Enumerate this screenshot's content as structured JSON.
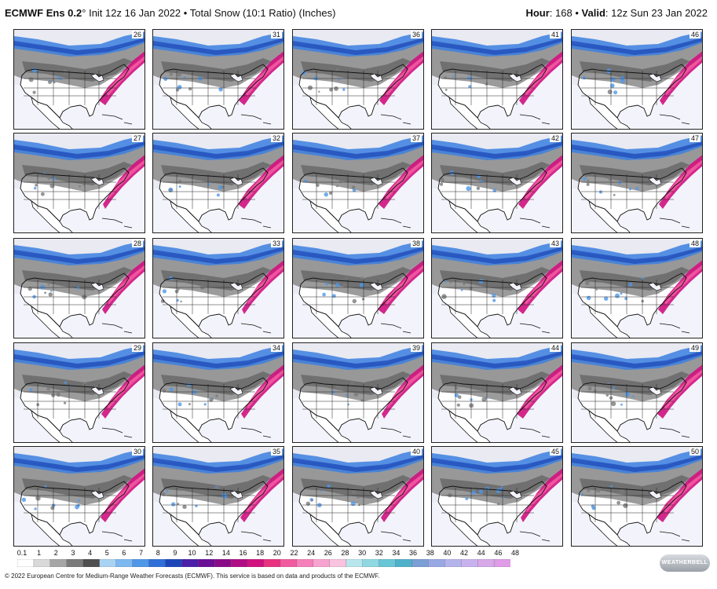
{
  "header": {
    "model": "ECMWF Ens 0.2",
    "degree": "°",
    "init": "Init 12z 16 Jan 2022",
    "bullet": "•",
    "product": "Total Snow (10:1 Ratio) (Inches)",
    "hour_label": "Hour",
    "hour_value": ": 168",
    "bullet2": "•",
    "valid_label": "Valid",
    "valid_value": ": 12z Sun 23 Jan 2022"
  },
  "members": [
    [
      "26",
      "31",
      "36",
      "41",
      "46"
    ],
    [
      "27",
      "32",
      "37",
      "42",
      "47"
    ],
    [
      "28",
      "33",
      "38",
      "43",
      "48"
    ],
    [
      "29",
      "34",
      "39",
      "44",
      "49"
    ],
    [
      "30",
      "35",
      "40",
      "45",
      "50"
    ]
  ],
  "colorbar": {
    "labels": [
      "0.1",
      "1",
      "2",
      "3",
      "4",
      "5",
      "6",
      "7",
      "8",
      "9",
      "10",
      "12",
      "14",
      "16",
      "18",
      "20",
      "22",
      "24",
      "26",
      "28",
      "30",
      "32",
      "34",
      "36",
      "38",
      "40",
      "42",
      "44",
      "46",
      "48"
    ],
    "colors": [
      "#ffffff",
      "#d9d9d9",
      "#a6a6a6",
      "#7a7a7a",
      "#4f4f4f",
      "#a9d3f5",
      "#7db9f0",
      "#4f97e8",
      "#2f6fd8",
      "#1c46b8",
      "#4b1fa8",
      "#6a0e96",
      "#8a0b88",
      "#b00c84",
      "#d0117f",
      "#e8327f",
      "#f25a9f",
      "#f57fbb",
      "#f7a3cf",
      "#f9c3df",
      "#b8e6ec",
      "#8fd8e2",
      "#69c6d6",
      "#4fb1c9",
      "#7a9fd6",
      "#98a8e4",
      "#b4b4ec",
      "#c8b2ee",
      "#d8a8ea",
      "#e09ce6"
    ]
  },
  "footer": "© 2022 European Centre for Medium-Range Weather Forecasts (ECMWF). This service is based on data and products of the ECMWF.",
  "logo_text": "WeatherBELL"
}
